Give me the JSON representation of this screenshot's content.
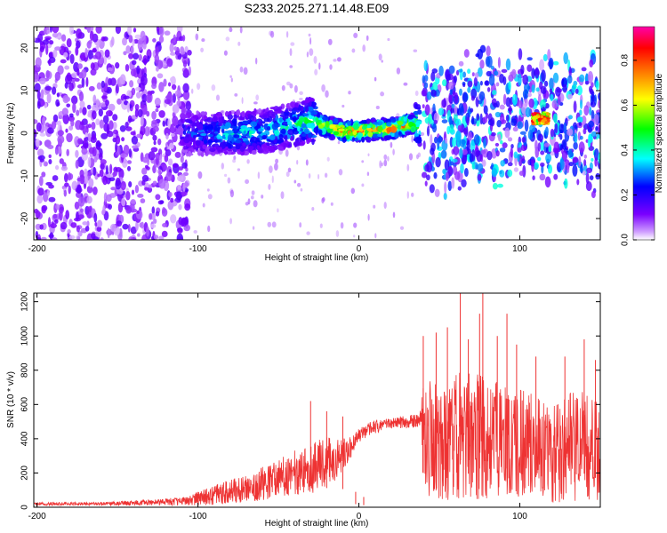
{
  "title": "S233.2025.271.14.48.E09",
  "chart_data": [
    {
      "type": "heatmap",
      "name": "spectrogram",
      "xlabel": "Height of straight line (km)",
      "ylabel": "Frequency (Hz)",
      "xlim": [
        -202,
        150
      ],
      "ylim": [
        -25,
        25
      ],
      "xticks": [
        -200,
        -100,
        0,
        100
      ],
      "xtick_labels": [
        "-200",
        "-100",
        "0",
        "100"
      ],
      "yticks": [
        20,
        10,
        0,
        -10,
        -20
      ],
      "ytick_labels": [
        "20",
        "10",
        "0",
        "-10",
        "-20"
      ],
      "colorbar": {
        "label": "Normalized spectral amplitude",
        "range": [
          0,
          0.95
        ],
        "ticks": [
          0.0,
          0.2,
          0.4,
          0.6,
          0.8
        ],
        "tick_labels": [
          "0.0",
          "0.2",
          "0.4",
          "0.6",
          "0.8"
        ],
        "colormap": [
          "#ffffff",
          "#cc99ff",
          "#7a00ff",
          "#0000ff",
          "#00ffff",
          "#00ff00",
          "#ffff00",
          "#ff8000",
          "#ff0000",
          "#ff00aa"
        ]
      },
      "noise_region": {
        "x": [
          -202,
          -105
        ],
        "freq": [
          -25,
          25
        ],
        "amplitude": 0.12
      },
      "signal_track": {
        "x": [
          -110,
          -80,
          -60,
          -40,
          -30,
          -20,
          -10,
          0,
          10,
          20,
          30,
          38
        ],
        "freq": [
          0,
          0,
          0.5,
          2,
          3,
          1.5,
          0.5,
          0.5,
          0.8,
          1,
          2,
          2
        ],
        "amplitude": [
          0.25,
          0.4,
          0.4,
          0.45,
          0.55,
          0.7,
          0.85,
          0.85,
          0.85,
          0.8,
          0.75,
          0.5
        ]
      },
      "upper_band": {
        "x": [
          40,
          150
        ],
        "freq": [
          -10,
          15
        ],
        "amplitude": 0.3
      },
      "high_spot": {
        "x": [
          108,
          118
        ],
        "freq": 3.5,
        "amplitude": 0.85
      }
    },
    {
      "type": "line",
      "name": "snr",
      "xlabel": "Height of straight line (km)",
      "ylabel": "SNR (10 * v/v)",
      "xlim": [
        -202,
        150
      ],
      "ylim": [
        0,
        1250
      ],
      "xticks": [
        -200,
        -100,
        0,
        100
      ],
      "xtick_labels": [
        "-200",
        "-100",
        "0",
        "100"
      ],
      "yticks": [
        0,
        200,
        400,
        600,
        800,
        1000,
        1200
      ],
      "ytick_labels": [
        "0",
        "200",
        "400",
        "600",
        "800",
        "1000",
        "1200"
      ],
      "series": [
        {
          "name": "SNR",
          "color": "#ee3333",
          "x": [
            -202,
            -180,
            -160,
            -140,
            -120,
            -110,
            -100,
            -90,
            -80,
            -70,
            -60,
            -50,
            -40,
            -30,
            -20,
            -10,
            -5,
            0,
            5,
            10,
            20,
            30,
            38,
            40,
            50,
            60,
            70,
            80,
            90,
            100,
            110,
            120,
            130,
            140,
            150
          ],
          "y": [
            20,
            20,
            20,
            25,
            30,
            35,
            50,
            70,
            90,
            110,
            140,
            170,
            200,
            230,
            260,
            300,
            350,
            420,
            450,
            470,
            490,
            500,
            510,
            380,
            400,
            420,
            420,
            400,
            400,
            380,
            380,
            300,
            350,
            360,
            300
          ],
          "spread": [
            10,
            10,
            10,
            15,
            20,
            25,
            40,
            60,
            70,
            80,
            100,
            110,
            130,
            150,
            150,
            100,
            60,
            40,
            40,
            40,
            30,
            40,
            40,
            350,
            360,
            380,
            380,
            350,
            330,
            320,
            300,
            280,
            320,
            320,
            300
          ]
        }
      ],
      "spikes": [
        {
          "x": -30,
          "y": 620
        },
        {
          "x": -20,
          "y": 560
        },
        {
          "x": -10,
          "y": 530
        },
        {
          "x": -2,
          "y": 90
        },
        {
          "x": 3,
          "y": 60
        },
        {
          "x": 40,
          "y": 1000
        },
        {
          "x": 48,
          "y": 1020
        },
        {
          "x": 55,
          "y": 1050
        },
        {
          "x": 63,
          "y": 1250
        },
        {
          "x": 68,
          "y": 980
        },
        {
          "x": 75,
          "y": 1130
        },
        {
          "x": 77,
          "y": 1250
        },
        {
          "x": 86,
          "y": 1000
        },
        {
          "x": 92,
          "y": 1130
        },
        {
          "x": 98,
          "y": 950
        },
        {
          "x": 110,
          "y": 880
        },
        {
          "x": 128,
          "y": 880
        },
        {
          "x": 140,
          "y": 980
        },
        {
          "x": 147,
          "y": 860
        }
      ]
    }
  ]
}
